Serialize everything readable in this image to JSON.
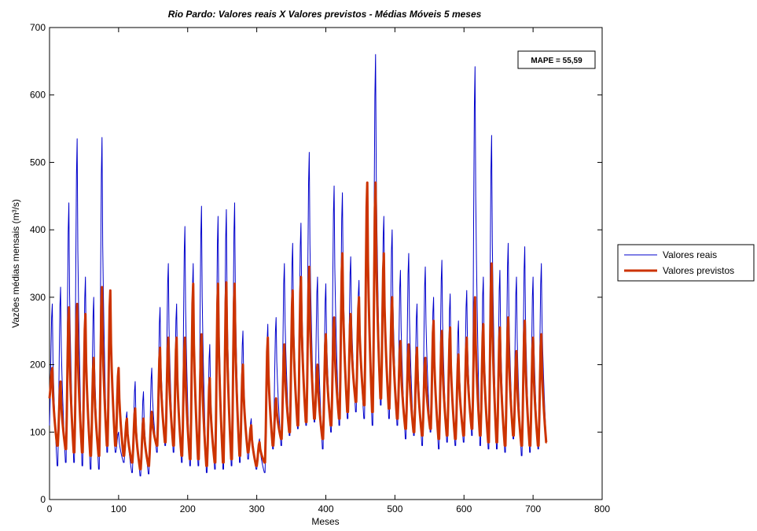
{
  "chart_data": {
    "type": "line",
    "title": "Rio Pardo: Valores reais X Valores previstos - Médias Móveis 5 meses",
    "xlabel": "Meses",
    "ylabel": "Vazões médias mensais (m³/s)",
    "xlim": [
      0,
      800
    ],
    "ylim": [
      0,
      700
    ],
    "xticks": [
      0,
      100,
      200,
      300,
      400,
      500,
      600,
      700,
      800
    ],
    "yticks": [
      0,
      100,
      200,
      300,
      400,
      500,
      600,
      700
    ],
    "xtick_labels": [
      "0",
      "100",
      "200",
      "300",
      "400",
      "500",
      "600",
      "700",
      "800"
    ],
    "ytick_labels": [
      "0",
      "100",
      "200",
      "300",
      "400",
      "500",
      "600",
      "700"
    ],
    "grid": false,
    "legend_position": "outside-right",
    "annotation": "MAPE = 55,59",
    "x": [
      0,
      12,
      24,
      36,
      48,
      60,
      72,
      84,
      96,
      108,
      120,
      132,
      144,
      156,
      168,
      180,
      192,
      204,
      216,
      228,
      240,
      252,
      264,
      276,
      288,
      300,
      312,
      324,
      336,
      348,
      360,
      372,
      384,
      396,
      408,
      420,
      432,
      444,
      456,
      468,
      480,
      492,
      504,
      516,
      528,
      540,
      552,
      564,
      576,
      588,
      600,
      612,
      624,
      636,
      648,
      660,
      672,
      684,
      696,
      708,
      720
    ],
    "series": [
      {
        "name": "Valores reais",
        "color": "#0000cc",
        "peaks": [
          290,
          315,
          440,
          535,
          330,
          300,
          537,
          290,
          100,
          130,
          175,
          160,
          195,
          285,
          350,
          290,
          405,
          350,
          435,
          230,
          420,
          430,
          440,
          250,
          120,
          90,
          260,
          270,
          350,
          380,
          410,
          515,
          330,
          320,
          465,
          455,
          360,
          325,
          470,
          660,
          420,
          400,
          340,
          365,
          290,
          345,
          300,
          355,
          305,
          265,
          310,
          642,
          330,
          540,
          340,
          380,
          330,
          375,
          330,
          350,
          160
        ],
        "troughs": [
          110,
          50,
          55,
          55,
          50,
          45,
          45,
          70,
          70,
          55,
          40,
          35,
          38,
          70,
          80,
          70,
          55,
          50,
          50,
          40,
          45,
          45,
          50,
          55,
          60,
          45,
          40,
          75,
          80,
          95,
          105,
          110,
          115,
          75,
          100,
          110,
          120,
          130,
          120,
          110,
          140,
          120,
          110,
          90,
          95,
          80,
          100,
          75,
          85,
          80,
          85,
          95,
          80,
          75,
          75,
          70,
          90,
          65,
          70,
          75,
          90
        ]
      },
      {
        "name": "Valores previstos",
        "color": "#cc3300",
        "peaks": [
          195,
          175,
          285,
          290,
          275,
          210,
          315,
          310,
          195,
          120,
          135,
          120,
          130,
          225,
          240,
          240,
          240,
          320,
          245,
          180,
          320,
          322,
          320,
          200,
          110,
          85,
          240,
          150,
          230,
          310,
          330,
          345,
          200,
          245,
          270,
          365,
          275,
          300,
          470,
          470,
          365,
          300,
          235,
          230,
          225,
          210,
          265,
          250,
          255,
          215,
          240,
          300,
          260,
          350,
          255,
          270,
          220,
          265,
          240,
          245,
          120
        ],
        "troughs": [
          150,
          80,
          75,
          70,
          70,
          65,
          65,
          80,
          80,
          65,
          55,
          45,
          50,
          80,
          85,
          80,
          65,
          60,
          60,
          50,
          55,
          55,
          60,
          65,
          70,
          50,
          55,
          80,
          90,
          100,
          110,
          115,
          120,
          90,
          110,
          120,
          130,
          145,
          140,
          130,
          150,
          135,
          120,
          105,
          100,
          95,
          105,
          90,
          95,
          90,
          95,
          105,
          95,
          85,
          85,
          80,
          95,
          80,
          80,
          80,
          85
        ]
      }
    ]
  }
}
